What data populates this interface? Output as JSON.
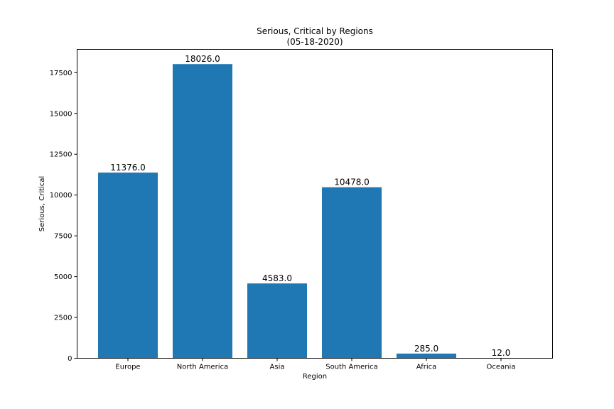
{
  "chart_data": {
    "type": "bar",
    "title": "Serious, Critical by Regions",
    "subtitle": "(05-18-2020)",
    "xlabel": "Region",
    "ylabel": "Serious, Critical",
    "categories": [
      "Europe",
      "North America",
      "Asia",
      "South America",
      "Africa",
      "Oceania"
    ],
    "values": [
      11376,
      18026,
      4583,
      10478,
      285,
      12
    ],
    "value_labels": [
      "11376.0",
      "18026.0",
      "4583.0",
      "10478.0",
      "285.0",
      "12.0"
    ],
    "yticks": [
      0,
      2500,
      5000,
      7500,
      10000,
      12500,
      15000,
      17500
    ],
    "ytick_labels": [
      "0",
      "2500",
      "5000",
      "7500",
      "10000",
      "12500",
      "15000",
      "17500"
    ],
    "ylim": [
      0,
      18928
    ],
    "grid": false,
    "bar_color": "#1f77b4"
  }
}
